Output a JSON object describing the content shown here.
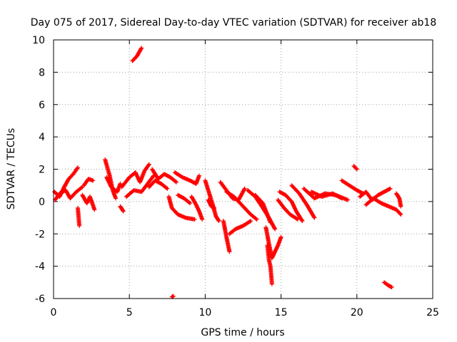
{
  "chart_data": {
    "type": "scatter",
    "title": "Day 075 of 2017, Sidereal Day-to-day VTEC variation (SDTVAR) for receiver ab18",
    "xlabel": "GPS time / hours",
    "ylabel": "SDTVAR / TECUs",
    "xlim": [
      0,
      25
    ],
    "ylim": [
      -6,
      10
    ],
    "xticks": [
      0,
      5,
      10,
      15,
      20,
      25
    ],
    "yticks": [
      -6,
      -4,
      -2,
      0,
      2,
      4,
      6,
      8,
      10
    ],
    "grid": true,
    "marker": "+",
    "color": "#ff0000",
    "segments": [
      {
        "points": [
          [
            0.05,
            0.6
          ],
          [
            0.4,
            0.3
          ],
          [
            0.7,
            0.9
          ],
          [
            1.0,
            1.4
          ],
          [
            1.3,
            1.7
          ],
          [
            1.6,
            2.1
          ]
        ]
      },
      {
        "points": [
          [
            0.1,
            0.1
          ],
          [
            0.4,
            0.5
          ],
          [
            0.8,
            0.7
          ],
          [
            1.1,
            0.2
          ],
          [
            1.5,
            0.6
          ],
          [
            1.9,
            0.9
          ]
        ]
      },
      {
        "points": [
          [
            1.6,
            -0.4
          ],
          [
            1.7,
            -1.5
          ]
        ]
      },
      {
        "points": [
          [
            1.9,
            0.4
          ],
          [
            2.2,
            -0.1
          ],
          [
            2.4,
            0.3
          ],
          [
            2.7,
            -0.5
          ]
        ]
      },
      {
        "points": [
          [
            2.0,
            1.0
          ],
          [
            2.3,
            1.4
          ],
          [
            2.6,
            1.3
          ]
        ]
      },
      {
        "points": [
          [
            3.4,
            2.6
          ],
          [
            3.7,
            1.6
          ],
          [
            3.9,
            0.7
          ],
          [
            4.1,
            0.2
          ]
        ]
      },
      {
        "points": [
          [
            3.5,
            1.5
          ],
          [
            3.8,
            0.9
          ],
          [
            4.2,
            0.6
          ],
          [
            4.4,
            1.1
          ]
        ]
      },
      {
        "points": [
          [
            4.4,
            -0.3
          ],
          [
            4.6,
            -0.6
          ]
        ]
      },
      {
        "points": [
          [
            4.5,
            0.9
          ],
          [
            5.0,
            1.5
          ],
          [
            5.4,
            1.8
          ],
          [
            5.7,
            1.2
          ],
          [
            6.0,
            1.9
          ],
          [
            6.3,
            2.3
          ]
        ]
      },
      {
        "points": [
          [
            4.8,
            0.3
          ],
          [
            5.3,
            0.7
          ],
          [
            5.8,
            0.6
          ],
          [
            6.2,
            1.1
          ],
          [
            6.6,
            1.6
          ]
        ]
      },
      {
        "points": [
          [
            6.3,
            0.9
          ],
          [
            6.7,
            1.3
          ],
          [
            7.1,
            1.1
          ],
          [
            7.5,
            0.8
          ]
        ]
      },
      {
        "points": [
          [
            6.5,
            2.0
          ],
          [
            6.9,
            1.4
          ],
          [
            7.3,
            1.7
          ],
          [
            7.7,
            1.5
          ],
          [
            8.1,
            1.2
          ]
        ]
      },
      {
        "points": [
          [
            7.6,
            0.3
          ],
          [
            7.8,
            -0.4
          ],
          [
            8.2,
            -0.8
          ],
          [
            8.7,
            -1.0
          ],
          [
            9.3,
            -1.1
          ]
        ]
      },
      {
        "points": [
          [
            8.0,
            1.8
          ],
          [
            8.5,
            1.5
          ],
          [
            9.0,
            1.3
          ],
          [
            9.4,
            1.1
          ],
          [
            9.6,
            1.6
          ]
        ]
      },
      {
        "points": [
          [
            8.2,
            0.4
          ],
          [
            8.6,
            0.2
          ],
          [
            9.0,
            -0.1
          ]
        ]
      },
      {
        "points": [
          [
            9.1,
            0.3
          ],
          [
            9.4,
            -0.2
          ],
          [
            9.6,
            -0.6
          ],
          [
            9.8,
            -1.1
          ]
        ]
      },
      {
        "points": [
          [
            10.0,
            1.3
          ],
          [
            10.3,
            0.4
          ],
          [
            10.5,
            -0.2
          ],
          [
            10.7,
            -0.9
          ],
          [
            10.9,
            -1.2
          ]
        ]
      },
      {
        "points": [
          [
            10.2,
            0.1
          ],
          [
            10.4,
            -0.3
          ],
          [
            10.6,
            -0.4
          ]
        ]
      },
      {
        "points": [
          [
            11.0,
            1.2
          ],
          [
            11.4,
            0.7
          ],
          [
            11.8,
            0.2
          ],
          [
            12.2,
            0.1
          ],
          [
            12.6,
            0.8
          ]
        ]
      },
      {
        "points": [
          [
            11.2,
            -1.2
          ],
          [
            11.4,
            -2.2
          ],
          [
            11.6,
            -3.1
          ]
        ]
      },
      {
        "points": [
          [
            11.4,
            0.6
          ],
          [
            11.9,
            0.3
          ],
          [
            12.5,
            -0.3
          ],
          [
            13.0,
            -0.8
          ],
          [
            13.4,
            -1.1
          ]
        ]
      },
      {
        "points": [
          [
            11.6,
            -2.0
          ],
          [
            12.0,
            -1.7
          ],
          [
            12.5,
            -1.5
          ],
          [
            13.0,
            -1.2
          ]
        ]
      },
      {
        "points": [
          [
            12.8,
            0.7
          ],
          [
            13.3,
            0.3
          ],
          [
            13.8,
            -0.4
          ],
          [
            14.2,
            -1.0
          ],
          [
            14.6,
            -1.7
          ]
        ]
      },
      {
        "points": [
          [
            13.3,
            0.4
          ],
          [
            13.8,
            -0.1
          ],
          [
            14.3,
            -1.3
          ]
        ]
      },
      {
        "points": [
          [
            14.0,
            -1.6
          ],
          [
            14.2,
            -2.6
          ],
          [
            14.4,
            -3.5
          ],
          [
            14.6,
            -3.1
          ],
          [
            14.8,
            -2.7
          ],
          [
            15.0,
            -2.2
          ]
        ]
      },
      {
        "points": [
          [
            14.1,
            -2.7
          ],
          [
            14.2,
            -3.6
          ],
          [
            14.3,
            -4.0
          ],
          [
            14.4,
            -5.1
          ]
        ]
      },
      {
        "points": [
          [
            14.8,
            0.1
          ],
          [
            15.2,
            -0.4
          ],
          [
            15.6,
            -0.8
          ],
          [
            16.1,
            -1.1
          ]
        ]
      },
      {
        "points": [
          [
            14.9,
            0.6
          ],
          [
            15.3,
            0.4
          ],
          [
            15.7,
            0.0
          ],
          [
            16.0,
            -0.6
          ],
          [
            16.4,
            -1.2
          ]
        ]
      },
      {
        "points": [
          [
            15.7,
            1.0
          ],
          [
            16.2,
            0.5
          ],
          [
            16.7,
            -0.2
          ],
          [
            17.2,
            -1.0
          ]
        ]
      },
      {
        "points": [
          [
            16.5,
            0.8
          ],
          [
            17.2,
            0.2
          ],
          [
            17.9,
            0.5
          ],
          [
            18.6,
            0.4
          ],
          [
            19.4,
            0.1
          ]
        ]
      },
      {
        "points": [
          [
            17.0,
            0.6
          ],
          [
            17.7,
            0.3
          ],
          [
            18.4,
            0.5
          ],
          [
            19.0,
            0.2
          ]
        ]
      },
      {
        "points": [
          [
            19.0,
            1.3
          ],
          [
            19.5,
            1.0
          ],
          [
            20.0,
            0.7
          ],
          [
            20.4,
            0.5
          ]
        ]
      },
      {
        "points": [
          [
            19.8,
            2.2
          ],
          [
            20.0,
            2.0
          ]
        ]
      },
      {
        "points": [
          [
            20.2,
            0.3
          ],
          [
            20.6,
            0.6
          ],
          [
            21.0,
            0.1
          ],
          [
            21.4,
            0.4
          ],
          [
            21.8,
            0.6
          ],
          [
            22.2,
            0.8
          ]
        ]
      },
      {
        "points": [
          [
            20.6,
            -0.2
          ],
          [
            21.1,
            0.2
          ],
          [
            21.6,
            -0.1
          ],
          [
            22.1,
            -0.3
          ],
          [
            22.6,
            -0.5
          ],
          [
            22.9,
            -0.8
          ]
        ]
      },
      {
        "points": [
          [
            22.6,
            0.5
          ],
          [
            22.8,
            0.2
          ],
          [
            22.9,
            -0.3
          ]
        ]
      },
      {
        "points": [
          [
            5.2,
            8.7
          ],
          [
            5.5,
            9.0
          ],
          [
            5.8,
            9.5
          ]
        ]
      },
      {
        "points": [
          [
            7.8,
            -5.9
          ],
          [
            7.9,
            -5.85
          ]
        ]
      },
      {
        "points": [
          [
            21.8,
            -5.0
          ],
          [
            22.1,
            -5.2
          ],
          [
            22.3,
            -5.3
          ]
        ]
      }
    ]
  }
}
